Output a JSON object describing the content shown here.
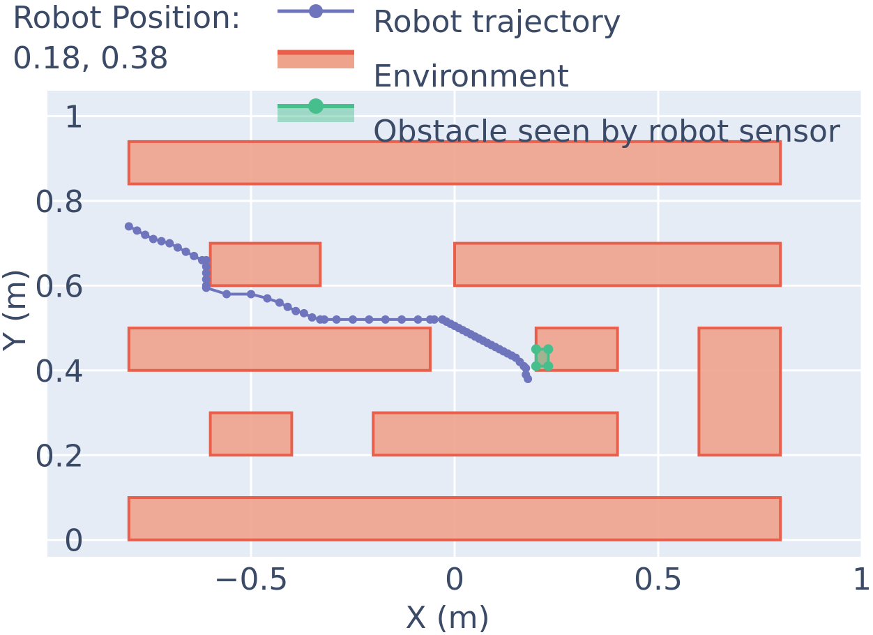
{
  "status": {
    "label": "Robot Position:",
    "value": "0.18, 0.38"
  },
  "chart_data": {
    "type": "scatter",
    "xlabel": "X (m)",
    "ylabel": "Y (m)",
    "xlim": [
      -1.0,
      1.0
    ],
    "ylim": [
      -0.04,
      1.06
    ],
    "x_ticks": [
      {
        "v": -0.5,
        "label": "−0.5"
      },
      {
        "v": 0,
        "label": "0"
      },
      {
        "v": 0.5,
        "label": "0.5"
      },
      {
        "v": 1,
        "label": "1"
      }
    ],
    "y_ticks": [
      {
        "v": 0,
        "label": "0"
      },
      {
        "v": 0.2,
        "label": "0.2"
      },
      {
        "v": 0.4,
        "label": "0.4"
      },
      {
        "v": 0.6,
        "label": "0.6"
      },
      {
        "v": 0.8,
        "label": "0.8"
      },
      {
        "v": 1,
        "label": "1"
      }
    ],
    "grid": true,
    "legend_position": "top-right",
    "colors": {
      "plot_bg": "#e5ecf6",
      "grid": "#ffffff",
      "trajectory": "#6f75bd",
      "environment_edge": "#e8604b",
      "environment_fill": "#eea38c",
      "obstacle": "#47bf8c",
      "text": "#3b4a66"
    },
    "series": [
      {
        "name": "Robot trajectory",
        "kind": "line-markers",
        "x": [
          -0.8,
          -0.78,
          -0.76,
          -0.74,
          -0.72,
          -0.7,
          -0.68,
          -0.66,
          -0.64,
          -0.62,
          -0.61,
          -0.61,
          -0.61,
          -0.61,
          -0.61,
          -0.61,
          -0.56,
          -0.5,
          -0.46,
          -0.43,
          -0.41,
          -0.39,
          -0.37,
          -0.35,
          -0.33,
          -0.32,
          -0.29,
          -0.25,
          -0.21,
          -0.17,
          -0.13,
          -0.09,
          -0.06,
          -0.05,
          -0.03,
          -0.02,
          -0.01,
          0.0,
          0.01,
          0.02,
          0.03,
          0.04,
          0.05,
          0.06,
          0.07,
          0.08,
          0.09,
          0.1,
          0.11,
          0.12,
          0.13,
          0.14,
          0.15,
          0.16,
          0.17,
          0.175,
          0.175,
          0.18
        ],
        "y": [
          0.74,
          0.73,
          0.72,
          0.71,
          0.705,
          0.7,
          0.69,
          0.68,
          0.67,
          0.66,
          0.66,
          0.645,
          0.63,
          0.615,
          0.6,
          0.595,
          0.58,
          0.58,
          0.57,
          0.56,
          0.55,
          0.54,
          0.535,
          0.525,
          0.52,
          0.52,
          0.52,
          0.52,
          0.52,
          0.52,
          0.52,
          0.52,
          0.52,
          0.52,
          0.52,
          0.515,
          0.51,
          0.505,
          0.5,
          0.495,
          0.49,
          0.485,
          0.48,
          0.475,
          0.47,
          0.465,
          0.46,
          0.455,
          0.45,
          0.445,
          0.44,
          0.435,
          0.43,
          0.42,
          0.41,
          0.405,
          0.39,
          0.38
        ]
      },
      {
        "name": "Environment",
        "kind": "rectangles",
        "rects": [
          {
            "x0": -0.8,
            "x1": 0.8,
            "y0": 0.84,
            "y1": 0.94
          },
          {
            "x0": -0.6,
            "x1": -0.33,
            "y0": 0.6,
            "y1": 0.7
          },
          {
            "x0": 0.0,
            "x1": 0.8,
            "y0": 0.6,
            "y1": 0.7
          },
          {
            "x0": -0.8,
            "x1": -0.06,
            "y0": 0.4,
            "y1": 0.5
          },
          {
            "x0": 0.2,
            "x1": 0.4,
            "y0": 0.4,
            "y1": 0.5
          },
          {
            "x0": 0.6,
            "x1": 0.8,
            "y0": 0.2,
            "y1": 0.5
          },
          {
            "x0": -0.6,
            "x1": -0.4,
            "y0": 0.2,
            "y1": 0.3
          },
          {
            "x0": -0.2,
            "x1": 0.4,
            "y0": 0.2,
            "y1": 0.3
          },
          {
            "x0": -0.8,
            "x1": 0.8,
            "y0": 0.0,
            "y1": 0.1
          }
        ]
      },
      {
        "name": "Obstacle seen by robot sensor",
        "kind": "polygon-markers",
        "x": [
          0.2,
          0.23,
          0.23,
          0.2,
          0.2
        ],
        "y": [
          0.45,
          0.45,
          0.41,
          0.41,
          0.45
        ]
      }
    ]
  }
}
